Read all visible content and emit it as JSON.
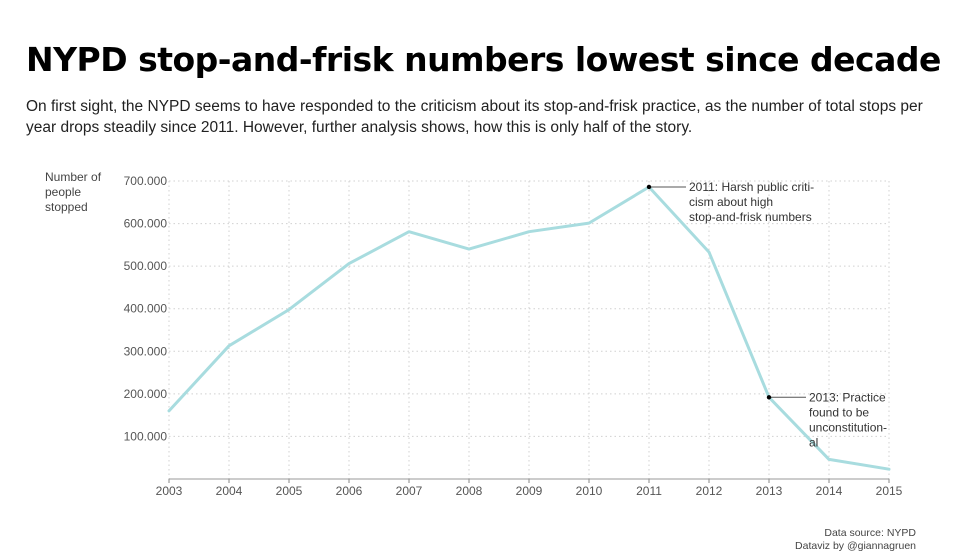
{
  "header": {
    "title": "NYPD stop-and-frisk numbers lowest since decade",
    "subtitle": "On first sight, the NYPD seems to have responded to the criticism about its stop-and-frisk practice, as the number of total stops per year drops steadily since 2011. However, further analysis shows, how this is only half of the story."
  },
  "footer": {
    "source": "Data source: NYPD",
    "credit": "Dataviz by @giannagruen"
  },
  "chart_data": {
    "type": "line",
    "title": "NYPD stop-and-frisk numbers lowest since decade",
    "xlabel": "",
    "ylabel": "Number of people stopped",
    "ylabel_lines": [
      "Number of",
      "people",
      "stopped"
    ],
    "x": [
      2003,
      2004,
      2005,
      2006,
      2007,
      2008,
      2009,
      2010,
      2011,
      2012,
      2013,
      2014,
      2015
    ],
    "x_tick_labels": [
      "2003",
      "2004",
      "2005",
      "2006",
      "2007",
      "2008",
      "2009",
      "2010",
      "2011",
      "2012",
      "2013",
      "2014",
      "2015"
    ],
    "series": [
      {
        "values": [
          160000,
          313000,
          398000,
          506000,
          581000,
          540000,
          581000,
          601000,
          686000,
          533000,
          192000,
          46000,
          23000
        ]
      }
    ],
    "ylim": [
      0,
      700000
    ],
    "y_ticks": [
      100000,
      200000,
      300000,
      400000,
      500000,
      600000,
      700000
    ],
    "y_tick_labels": [
      "100.000",
      "200.000",
      "300.000",
      "400.000",
      "500.000",
      "600.000",
      "700.000"
    ],
    "grid": true,
    "line_color": "#a8dcdf",
    "annotations": [
      {
        "x": 2011,
        "y": 686000,
        "lines": [
          "2011: Harsh public criti-",
          "cism about high",
          "stop-and-frisk numbers"
        ]
      },
      {
        "x": 2013,
        "y": 192000,
        "lines": [
          "2013: Practice",
          "found to be",
          "unconstitution-",
          "al"
        ]
      }
    ]
  }
}
